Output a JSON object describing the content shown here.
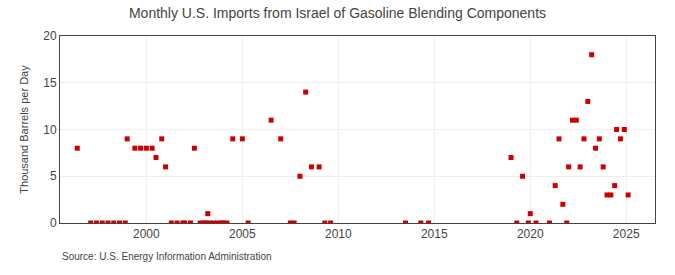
{
  "chart_data": {
    "type": "scatter",
    "title": "Monthly U.S. Imports from Israel of Gasoline Blending Components",
    "y_label": "Thousand Barrels per Day",
    "annotations": [
      "Source: U.S. Energy Information Administration"
    ],
    "color": "#cc0000",
    "marker": "square",
    "grid": true,
    "xlim": [
      1995.5,
      2026.5
    ],
    "ylim": [
      0,
      20
    ],
    "xticks": [
      2000,
      2005,
      2010,
      2015,
      2020,
      2025
    ],
    "yticks": [
      0,
      5,
      10,
      15,
      20
    ],
    "x": [
      1996.4,
      1997.1,
      1997.4,
      1997.7,
      1998.0,
      1998.3,
      1998.6,
      1998.9,
      1999.0,
      1999.4,
      1999.7,
      2000.0,
      2000.3,
      2000.5,
      2000.8,
      2001.0,
      2001.3,
      2001.6,
      2001.9,
      2002.0,
      2002.3,
      2002.5,
      2002.8,
      2003.0,
      2003.1,
      2003.2,
      2003.3,
      2003.5,
      2003.7,
      2003.9,
      2004.0,
      2004.2,
      2004.5,
      2005.0,
      2005.3,
      2006.5,
      2007.0,
      2007.5,
      2007.7,
      2008.0,
      2008.3,
      2008.6,
      2009.0,
      2009.3,
      2009.6,
      2013.5,
      2014.3,
      2014.7,
      2019.0,
      2019.3,
      2019.6,
      2019.9,
      2020.0,
      2020.3,
      2021.0,
      2021.3,
      2021.5,
      2021.7,
      2021.9,
      2022.0,
      2022.2,
      2022.4,
      2022.6,
      2022.8,
      2023.0,
      2023.2,
      2023.4,
      2023.6,
      2023.8,
      2024.0,
      2024.2,
      2024.4,
      2024.5,
      2024.7,
      2024.9,
      2025.1
    ],
    "values": [
      8,
      0,
      0,
      0,
      0,
      0,
      0,
      0,
      9,
      8,
      8,
      8,
      8,
      7,
      9,
      6,
      0,
      0,
      0,
      0,
      0,
      8,
      0,
      0,
      0,
      1,
      0,
      0,
      0,
      0,
      0,
      0,
      9,
      9,
      0,
      11,
      9,
      0,
      0,
      5,
      14,
      6,
      6,
      0,
      0,
      0,
      0,
      0,
      7,
      0,
      5,
      0,
      1,
      0,
      0,
      4,
      9,
      2,
      0,
      6,
      11,
      11,
      6,
      9,
      13,
      18,
      8,
      9,
      6,
      3,
      3,
      4,
      10,
      9,
      10,
      3
    ]
  }
}
